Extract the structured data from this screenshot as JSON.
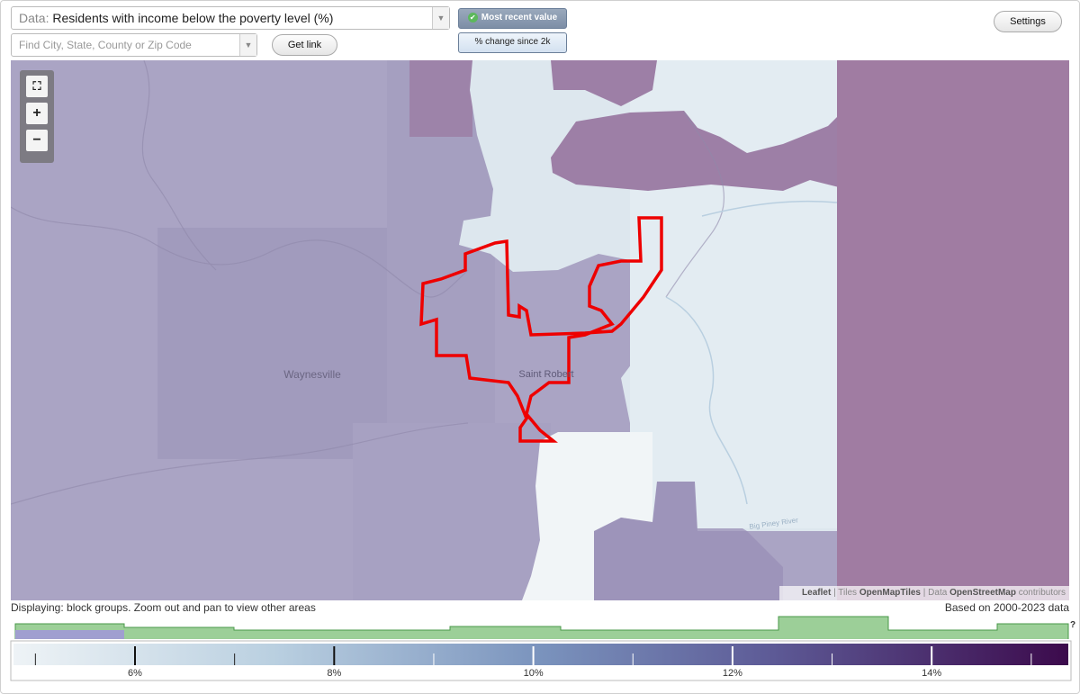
{
  "controls": {
    "data_label": "Data:",
    "data_select": "Residents with income below the poverty level (%)",
    "search_placeholder": "Find City, State, County or Zip Code",
    "get_link": "Get link",
    "toggle": [
      "Most recent value",
      "% change since 2k"
    ],
    "settings": "Settings"
  },
  "zoom": {
    "in": "+",
    "out": "−"
  },
  "map": {
    "places": [
      "Waynesville",
      "Saint Robert",
      "Big Piney River"
    ]
  },
  "attribution": [
    "Leaflet",
    "|",
    "Tiles",
    "OpenMapTiles",
    "|",
    "Data",
    "OpenStreetMap",
    "contributors"
  ],
  "status": {
    "displaying": "Displaying: block groups. Zoom out and pan to view other areas",
    "based_on": "Based on 2000-2023 data"
  },
  "legend": {
    "help": "?",
    "ticks": [
      "6%",
      "8%",
      "10%",
      "12%",
      "14%"
    ]
  }
}
